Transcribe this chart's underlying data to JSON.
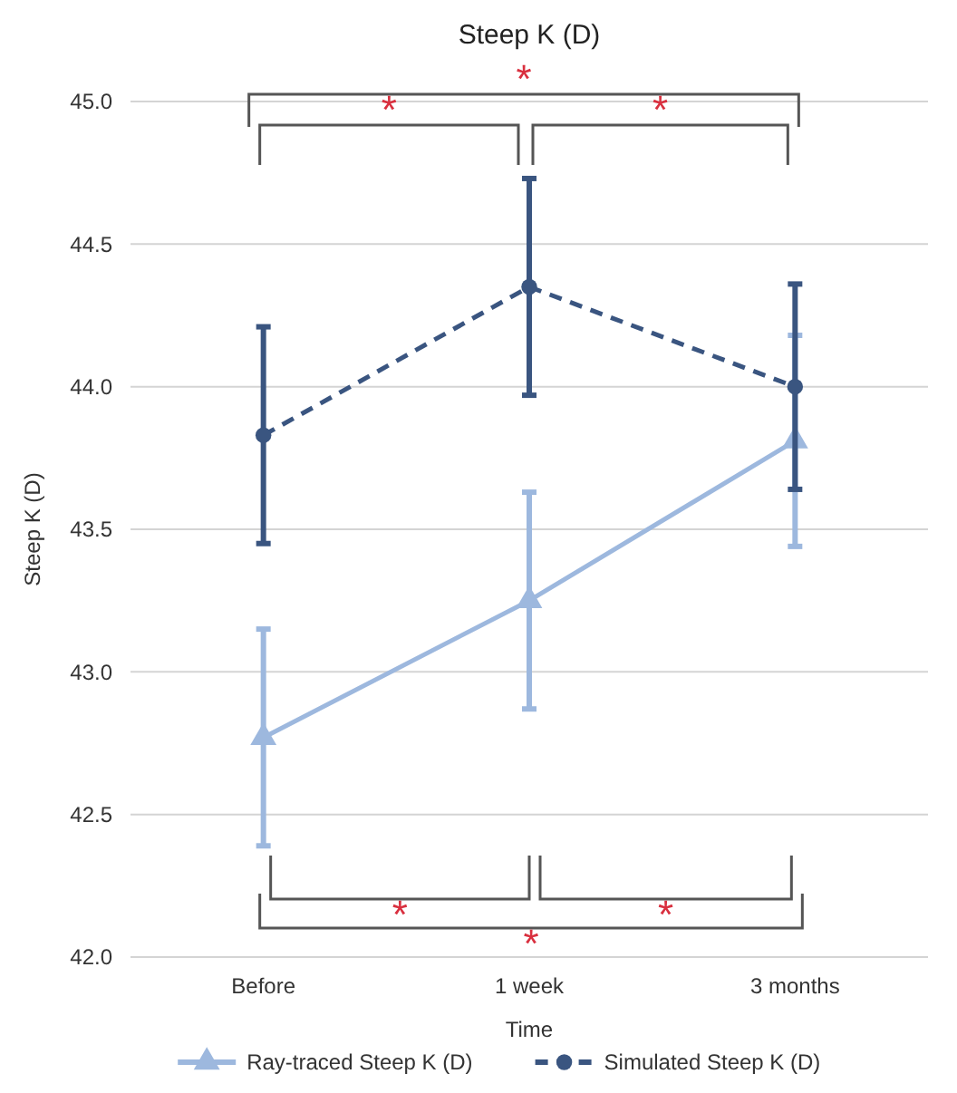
{
  "chart_data": {
    "type": "line",
    "title": "Steep K (D)",
    "xlabel": "Time",
    "ylabel": "Steep K (D)",
    "categories": [
      "Before",
      "1 week",
      "3 months"
    ],
    "series": [
      {
        "name": "Ray-traced Steep K (D)",
        "color": "#9db8de",
        "values": [
          42.77,
          43.25,
          43.81
        ],
        "errors": [
          0.38,
          0.38,
          0.37
        ],
        "marker": "triangle",
        "line_style": "solid"
      },
      {
        "name": "Simulated Steep K (D)",
        "color": "#3a5580",
        "values": [
          43.83,
          44.35,
          44.0
        ],
        "errors": [
          0.38,
          0.38,
          0.36
        ],
        "marker": "circle",
        "line_style": "dashed"
      }
    ],
    "ylim": [
      42.0,
      45.0
    ],
    "yticks": [
      {
        "value": 42,
        "label": "42.0"
      },
      {
        "value": 42.5,
        "label": "42.5"
      },
      {
        "value": 43,
        "label": "43.0"
      },
      {
        "value": 43.5,
        "label": "43.5"
      },
      {
        "value": 44,
        "label": "44.0"
      },
      {
        "value": 44.5,
        "label": "44.5"
      },
      {
        "value": 45,
        "label": "45.0"
      }
    ],
    "grid": "y",
    "legend": "bottom",
    "annotations": [
      "*",
      "*",
      "*",
      "*",
      "*",
      "*"
    ]
  }
}
